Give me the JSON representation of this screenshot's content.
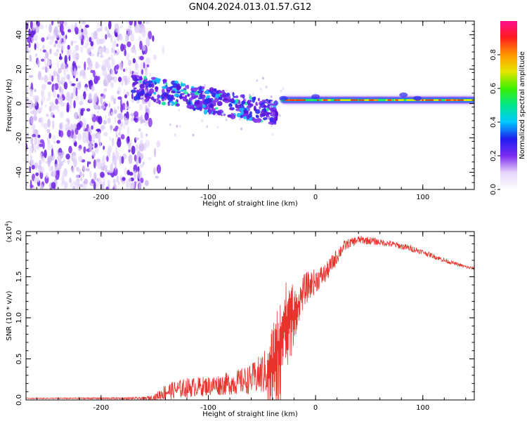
{
  "title": "GN04.2024.013.01.57.G12",
  "colors": {
    "snr_line": "#e8332d",
    "spectrum_purple": "#6a1fe6",
    "spectrum_light": "#d8c2f5",
    "colorbar": [
      "#ffffff",
      "#e6d5fa",
      "#7b2cf0",
      "#1e1ef0",
      "#00c8ff",
      "#00e68c",
      "#3cf000",
      "#e6e600",
      "#ff9600",
      "#ff1e1e",
      "#ff0f8c"
    ]
  },
  "chart_data": [
    {
      "type": "heatmap",
      "title": "GN04.2024.013.01.57.G12",
      "xlabel": "Height of straight line (km)",
      "ylabel": "Frequency (Hz)",
      "xlim": [
        -270,
        148
      ],
      "ylim": [
        -50,
        48
      ],
      "xticks": [
        "-200",
        "-100",
        "0",
        "100"
      ],
      "xtick_values": [
        -200,
        -100,
        0,
        100
      ],
      "yticks": [
        "40",
        "20",
        "0",
        "-20",
        "-40"
      ],
      "ytick_values": [
        40,
        20,
        0,
        -20,
        -40
      ],
      "colorbar": {
        "label": "Normalized spectral amplitude",
        "range": [
          0,
          1
        ],
        "ticks": [
          "0.0",
          "0.2",
          "0.4",
          "0.6",
          "0.8"
        ],
        "tick_values": [
          0.0,
          0.2,
          0.4,
          0.6,
          0.8
        ]
      },
      "regions": [
        {
          "name": "noise",
          "x_range": [
            -270,
            -155
          ],
          "freq_range": [
            -50,
            48
          ]
        },
        {
          "name": "descending",
          "x_range": [
            -170,
            -35
          ],
          "freq_start": 10,
          "freq_end": -6
        },
        {
          "name": "line",
          "x_range": [
            -35,
            148
          ],
          "freq": 2
        }
      ]
    },
    {
      "type": "line",
      "xlabel": "Height of straight line (km)",
      "ylabel": "SNR (10 * v/v)",
      "ylabel_multiplier": "(x10",
      "ylabel_exponent": "4",
      "ylabel_close": ")",
      "xlim": [
        -270,
        148
      ],
      "ylim": [
        0,
        2.05
      ],
      "xticks": [
        "-200",
        "-100",
        "0",
        "100"
      ],
      "xtick_values": [
        -200,
        -100,
        0,
        100
      ],
      "yticks": [
        "0.0",
        "0.5",
        "1.0",
        "1.5",
        "2.0"
      ],
      "ytick_values": [
        0.0,
        0.5,
        1.0,
        1.5,
        2.0
      ],
      "series": [
        {
          "x": [
            -270,
            -250,
            -200,
            -160,
            -150,
            -140,
            -120,
            -100,
            -80,
            -60,
            -45,
            -38,
            -30,
            -25,
            -20,
            -15,
            -10,
            0,
            10,
            20,
            25,
            30,
            40,
            50,
            60,
            70,
            80,
            90,
            100,
            110,
            120,
            130,
            140,
            148
          ],
          "y": [
            0.02,
            0.02,
            0.02,
            0.02,
            0.03,
            0.1,
            0.15,
            0.17,
            0.2,
            0.25,
            0.35,
            0.5,
            0.8,
            1.0,
            1.1,
            1.2,
            1.35,
            1.45,
            1.55,
            1.75,
            1.85,
            1.9,
            1.95,
            1.94,
            1.92,
            1.9,
            1.87,
            1.84,
            1.8,
            1.75,
            1.7,
            1.66,
            1.62,
            1.6
          ],
          "noise": [
            0.005,
            0.005,
            0.01,
            0.015,
            0.04,
            0.1,
            0.12,
            0.12,
            0.14,
            0.18,
            0.3,
            0.55,
            0.6,
            0.5,
            0.3,
            0.2,
            0.2,
            0.15,
            0.12,
            0.1,
            0.08,
            0.06,
            0.05,
            0.05,
            0.04,
            0.04,
            0.04,
            0.04,
            0.03,
            0.03,
            0.03,
            0.02,
            0.02,
            0.02
          ]
        }
      ]
    }
  ]
}
